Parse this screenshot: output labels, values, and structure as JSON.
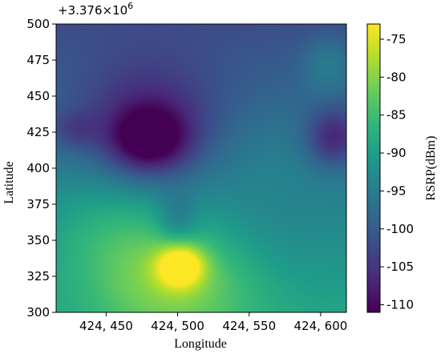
{
  "chart_data": {
    "type": "heatmap",
    "title": "",
    "xlabel": "Longitude",
    "ylabel": "Latitude",
    "colorbar_label": "RSRP(dBm)",
    "offset_text": "+3.376×10",
    "offset_exponent": "6",
    "x_range": [
      424415,
      424618
    ],
    "y_range": [
      300,
      500
    ],
    "x_ticks": [
      {
        "value": 424450,
        "label": "424, 450"
      },
      {
        "value": 424500,
        "label": "424, 500"
      },
      {
        "value": 424550,
        "label": "424, 550"
      },
      {
        "value": 424600,
        "label": "424, 600"
      }
    ],
    "y_ticks": [
      {
        "value": 300,
        "label": "300"
      },
      {
        "value": 325,
        "label": "325"
      },
      {
        "value": 350,
        "label": "350"
      },
      {
        "value": 375,
        "label": "375"
      },
      {
        "value": 400,
        "label": "400"
      },
      {
        "value": 425,
        "label": "425"
      },
      {
        "value": 450,
        "label": "450"
      },
      {
        "value": 475,
        "label": "475"
      },
      {
        "value": 500,
        "label": "500"
      }
    ],
    "colorbar_range": [
      -111,
      -73
    ],
    "colorbar_ticks": [
      {
        "value": -75,
        "label": "-75"
      },
      {
        "value": -80,
        "label": "-80"
      },
      {
        "value": -85,
        "label": "-85"
      },
      {
        "value": -90,
        "label": "-90"
      },
      {
        "value": -95,
        "label": "-95"
      },
      {
        "value": -100,
        "label": "-100"
      },
      {
        "value": -105,
        "label": "-105"
      },
      {
        "value": -110,
        "label": "-110"
      }
    ],
    "colormap": "viridis",
    "grid": false,
    "field": {
      "base_south": -89,
      "base_north": -102,
      "features": [
        {
          "x": 424502,
          "y": 332,
          "peak": -74.5,
          "sx": 11,
          "sy": 10
        },
        {
          "x": 424497,
          "y": 318,
          "peak": -80,
          "sx": 40,
          "sy": 30
        },
        {
          "x": 424450,
          "y": 350,
          "peak": -88,
          "sx": 35,
          "sy": 30
        },
        {
          "x": 424480,
          "y": 420,
          "peak": -110,
          "sx": 20,
          "sy": 16
        },
        {
          "x": 424480,
          "y": 440,
          "peak": -106,
          "sx": 35,
          "sy": 30
        },
        {
          "x": 424427,
          "y": 428,
          "peak": -102,
          "sx": 12,
          "sy": 10
        },
        {
          "x": 424609,
          "y": 422,
          "peak": -107,
          "sx": 13,
          "sy": 14
        },
        {
          "x": 424605,
          "y": 470,
          "peak": -95,
          "sx": 12,
          "sy": 14
        },
        {
          "x": 424500,
          "y": 365,
          "peak": -99,
          "sx": 10,
          "sy": 14
        },
        {
          "x": 424560,
          "y": 380,
          "peak": -94,
          "sx": 30,
          "sy": 30
        }
      ]
    }
  }
}
